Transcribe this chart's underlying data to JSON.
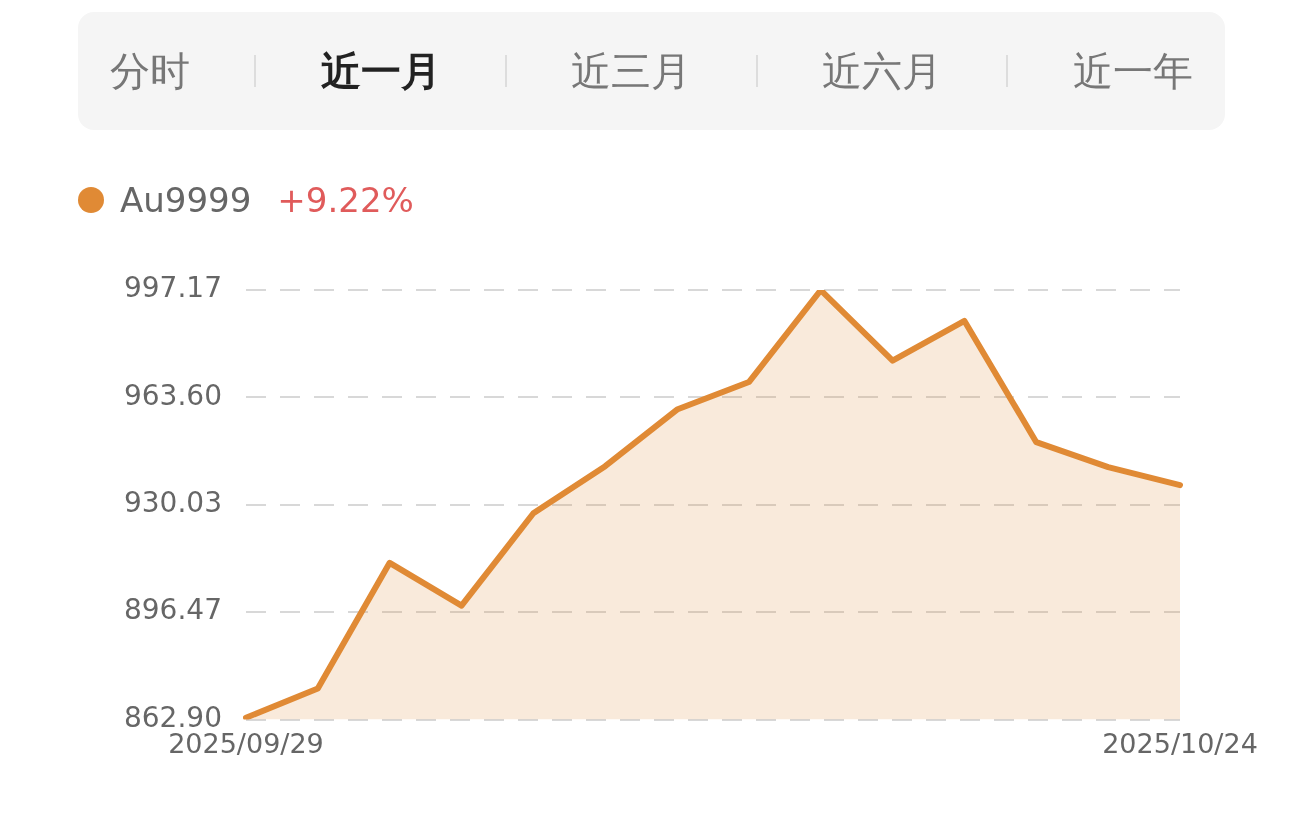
{
  "chart_data": {
    "type": "area",
    "annotations": [
      "分时",
      "近一月",
      "近三月",
      "近六月",
      "近一年",
      "+9.22%"
    ],
    "categories": [
      "2025/09/29",
      null,
      null,
      null,
      null,
      null,
      null,
      null,
      null,
      null,
      null,
      null,
      null,
      "2025/10/24"
    ],
    "series": [
      {
        "name": "Au9999",
        "color": "#e08a35",
        "values": [
          863.5,
          872.6,
          911.9,
          898.5,
          927.4,
          942.1,
          959.8,
          968.4,
          997.1,
          975.1,
          987.5,
          949.6,
          941.8,
          936.2
        ]
      }
    ],
    "ylim": [
      862.9,
      997.17
    ],
    "yticks": [
      {
        "value": 862.9,
        "label": "862.90"
      },
      896.47,
      930.03,
      {
        "value": 963.6,
        "label": "963.60"
      },
      997.17
    ],
    "grid": "y",
    "legend": "top left",
    "marker": "none",
    "line_style": "solid"
  }
}
